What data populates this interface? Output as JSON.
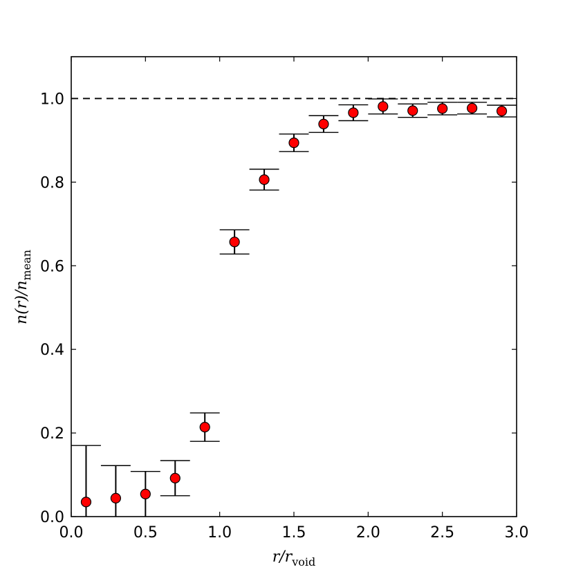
{
  "chart_data": {
    "type": "scatter",
    "title": "",
    "xlabel": {
      "main": "r/r",
      "sub": "void"
    },
    "ylabel": {
      "main": "n(r)/n",
      "sub": "mean"
    },
    "xlim": [
      0.0,
      3.0
    ],
    "ylim": [
      0.0,
      1.1
    ],
    "xticks": [
      0.0,
      0.5,
      1.0,
      1.5,
      2.0,
      2.5,
      3.0
    ],
    "yticks": [
      0.0,
      0.2,
      0.4,
      0.6,
      0.8,
      1.0
    ],
    "xtick_labels": [
      "0.0",
      "0.5",
      "1.0",
      "1.5",
      "2.0",
      "2.5",
      "3.0"
    ],
    "ytick_labels": [
      "0.0",
      "0.2",
      "0.4",
      "0.6",
      "0.8",
      "1.0"
    ],
    "reference_line": {
      "y": 1.0,
      "style": "dashed"
    },
    "grid": false,
    "marker_color": "#ff0000",
    "errorbar_capwidth": 0.2,
    "points": [
      {
        "x": 0.1,
        "y": 0.035,
        "ylow": 0.0,
        "yhigh": 0.17
      },
      {
        "x": 0.3,
        "y": 0.044,
        "ylow": 0.0,
        "yhigh": 0.122
      },
      {
        "x": 0.5,
        "y": 0.054,
        "ylow": 0.0,
        "yhigh": 0.108
      },
      {
        "x": 0.7,
        "y": 0.092,
        "ylow": 0.05,
        "yhigh": 0.134
      },
      {
        "x": 0.9,
        "y": 0.214,
        "ylow": 0.18,
        "yhigh": 0.248
      },
      {
        "x": 1.1,
        "y": 0.657,
        "ylow": 0.628,
        "yhigh": 0.686
      },
      {
        "x": 1.3,
        "y": 0.806,
        "ylow": 0.781,
        "yhigh": 0.831
      },
      {
        "x": 1.5,
        "y": 0.894,
        "ylow": 0.873,
        "yhigh": 0.915
      },
      {
        "x": 1.7,
        "y": 0.939,
        "ylow": 0.919,
        "yhigh": 0.959
      },
      {
        "x": 1.9,
        "y": 0.966,
        "ylow": 0.947,
        "yhigh": 0.985
      },
      {
        "x": 2.1,
        "y": 0.981,
        "ylow": 0.963,
        "yhigh": 0.999
      },
      {
        "x": 2.3,
        "y": 0.971,
        "ylow": 0.955,
        "yhigh": 0.987
      },
      {
        "x": 2.5,
        "y": 0.976,
        "ylow": 0.961,
        "yhigh": 0.991
      },
      {
        "x": 2.7,
        "y": 0.977,
        "ylow": 0.963,
        "yhigh": 0.991
      },
      {
        "x": 2.9,
        "y": 0.97,
        "ylow": 0.956,
        "yhigh": 0.984
      }
    ]
  }
}
